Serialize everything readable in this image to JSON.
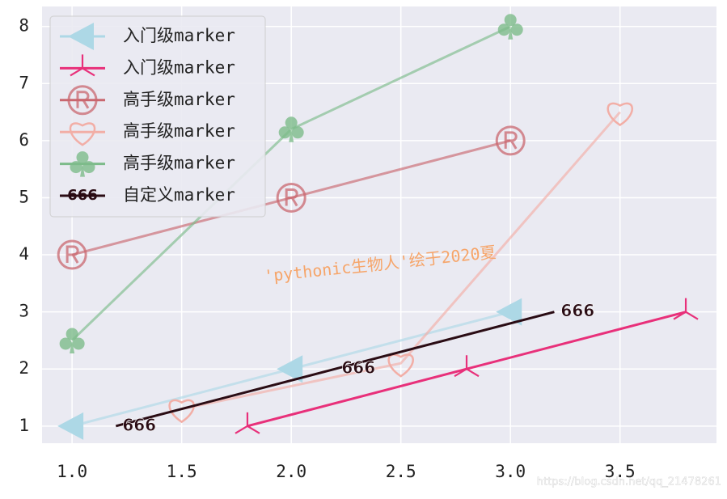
{
  "chart_data": {
    "type": "line",
    "annotation": "'pythonic生物人'绘于2020夏",
    "watermark": "https://blog.csdn.net/qq_21478261",
    "xlim": [
      0.863,
      3.94
    ],
    "xticks": [
      {
        "value": 1.0,
        "label": "1.0"
      },
      1.5,
      {
        "value": 2.0,
        "label": "2.0"
      },
      2.5,
      {
        "value": 3.0,
        "label": "3.0"
      },
      3.5
    ],
    "ylim": [
      0.7,
      8.35
    ],
    "yticks": [
      1,
      2,
      3,
      4,
      5,
      6,
      7,
      8
    ],
    "grid": true,
    "legend": "upper left",
    "series": [
      {
        "name": "入门级marker",
        "color": "#add8e6",
        "marker": "triangle-left",
        "x": [
          1,
          2,
          3
        ],
        "values": [
          1,
          2,
          3
        ]
      },
      {
        "name": "入门级marker",
        "color": "#e8307a",
        "marker": "tri",
        "x": [
          1.8,
          2.8,
          3.8
        ],
        "values": [
          1,
          2,
          3
        ]
      },
      {
        "name": "高手级marker",
        "color": "#c9676f",
        "marker": "registered",
        "x": [
          1,
          2,
          3
        ],
        "values": [
          4,
          5,
          6
        ]
      },
      {
        "name": "高手级marker",
        "color": "#f2aea6",
        "marker": "heart",
        "x": [
          1.5,
          2.5,
          3.5
        ],
        "values": [
          1.3,
          2.1,
          6.5
        ]
      },
      {
        "name": "高手级marker",
        "color": "#7dbb8a",
        "marker": "club",
        "x": [
          1,
          2,
          3
        ],
        "values": [
          2.5,
          6.2,
          8.0
        ]
      },
      {
        "name": "自定义marker",
        "color": "#2a0c14",
        "marker": "666",
        "x": [
          1.2,
          2.2,
          3.2
        ],
        "values": [
          1,
          2,
          3
        ]
      }
    ]
  }
}
